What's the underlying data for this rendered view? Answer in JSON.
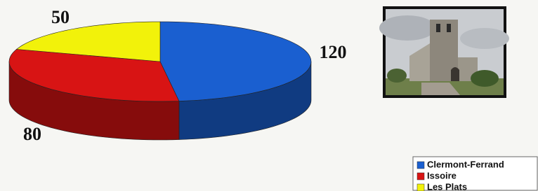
{
  "chart_data": {
    "type": "pie3d",
    "categories": [
      "Clermont-Ferrand",
      "Issoire",
      "Les Plats"
    ],
    "values": [
      120,
      80,
      50
    ],
    "colors": [
      "#1a5fd0",
      "#d81414",
      "#f2f20a"
    ]
  }
}
